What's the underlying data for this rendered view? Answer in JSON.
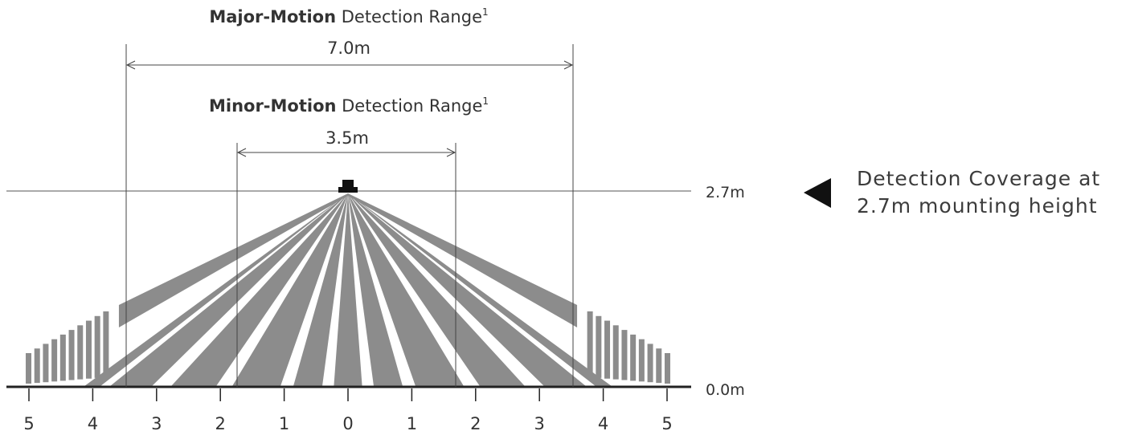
{
  "major": {
    "bold": "Major-Motion",
    "rest": " Detection Range",
    "sup": "1",
    "span": "7.0m"
  },
  "minor": {
    "bold": "Minor-Motion",
    "rest": " Detection Range",
    "sup": "1",
    "span": "3.5m"
  },
  "heights": {
    "mount": "2.7m",
    "ground": "0.0m"
  },
  "x_ticks": [
    "5",
    "4",
    "3",
    "2",
    "1",
    "0",
    "1",
    "2",
    "3",
    "4",
    "5"
  ],
  "annotation": {
    "line1": "Detection Coverage at",
    "line2": "2.7m mounting height",
    "icon": "left-triangle-icon"
  },
  "colors": {
    "ray": "#8c8c8c",
    "line": "#444444",
    "sensor": "#111111",
    "text": "#333333"
  }
}
